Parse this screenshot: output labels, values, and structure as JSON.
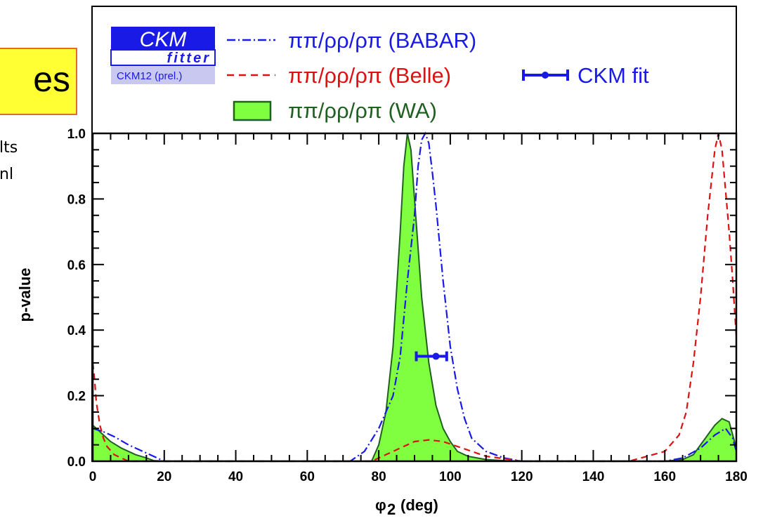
{
  "slide": {
    "badge_text": "es",
    "fragments": [
      "lts",
      "nl"
    ]
  },
  "logo": {
    "title": "CKM",
    "subtitle": "fitter",
    "tag": "CKM12 (prel.)"
  },
  "colors": {
    "babar": "#1a1ae6",
    "belle": "#dd1111",
    "wa_fill": "#80ff40",
    "wa_line": "#206020",
    "ckm_fit": "#1a1ae6",
    "logo_blue": "#1a1ae6",
    "logo_light": "#c8c8f0"
  },
  "chart_data": {
    "type": "line",
    "xlabel_main": "φ",
    "xlabel_sub": "2",
    "xlabel_unit": "(deg)",
    "ylabel": "p-value",
    "xlim": [
      0,
      180
    ],
    "ylim": [
      0,
      1.0
    ],
    "x_ticks": [
      0,
      20,
      40,
      60,
      80,
      100,
      120,
      140,
      160,
      180
    ],
    "y_ticks": [
      0.0,
      0.2,
      0.4,
      0.6,
      0.8,
      1.0
    ],
    "y_tick_labels": [
      "0.0",
      "0.2",
      "0.4",
      "0.6",
      "0.8",
      "1.0"
    ],
    "grid": false,
    "legend": [
      {
        "key": "babar",
        "label": "ππ/ρρ/ρπ (BABAR)",
        "style": "dashdot"
      },
      {
        "key": "belle",
        "label": "ππ/ρρ/ρπ (Belle)",
        "style": "dashed"
      },
      {
        "key": "wa",
        "label": "ππ/ρρ/ρπ (WA)",
        "style": "filled"
      },
      {
        "key": "ckm_fit",
        "label": "CKM fit",
        "style": "errorbar"
      }
    ],
    "series": [
      {
        "key": "wa",
        "x": [
          0,
          2,
          5,
          8,
          12,
          15,
          17,
          20,
          78,
          80,
          82,
          84,
          86,
          87,
          88,
          89,
          90,
          91,
          92,
          94,
          96,
          98,
          100,
          102,
          105,
          110,
          115,
          120,
          160,
          165,
          168,
          170,
          172,
          174,
          176,
          178,
          180
        ],
        "y": [
          0.11,
          0.09,
          0.06,
          0.04,
          0.02,
          0.01,
          0.002,
          0.0,
          0.0,
          0.05,
          0.15,
          0.35,
          0.7,
          0.9,
          1.0,
          0.95,
          0.8,
          0.65,
          0.5,
          0.3,
          0.17,
          0.1,
          0.06,
          0.03,
          0.015,
          0.005,
          0.002,
          0.0,
          0.0,
          0.005,
          0.02,
          0.05,
          0.08,
          0.11,
          0.13,
          0.12,
          0.04
        ]
      },
      {
        "key": "babar",
        "x": [
          0,
          3,
          6,
          10,
          14,
          18,
          20,
          72,
          76,
          80,
          84,
          86,
          88,
          90,
          91,
          92,
          93,
          94,
          95,
          96,
          98,
          100,
          102,
          104,
          106,
          110,
          115,
          120,
          160,
          165,
          170,
          174,
          177,
          179,
          180
        ],
        "y": [
          0.1,
          0.09,
          0.075,
          0.05,
          0.03,
          0.01,
          0.0,
          0.0,
          0.03,
          0.1,
          0.2,
          0.32,
          0.55,
          0.75,
          0.9,
          0.98,
          1.0,
          0.97,
          0.88,
          0.78,
          0.55,
          0.35,
          0.22,
          0.13,
          0.07,
          0.03,
          0.01,
          0.0,
          0.0,
          0.01,
          0.04,
          0.08,
          0.1,
          0.07,
          0.03
        ]
      },
      {
        "key": "belle",
        "x": [
          0,
          0.5,
          1,
          2,
          3,
          4,
          6,
          8,
          10,
          78,
          82,
          86,
          90,
          94,
          98,
          102,
          106,
          110,
          115,
          120,
          150,
          160,
          164,
          166,
          168,
          170,
          172,
          174,
          175,
          176,
          178,
          179,
          180
        ],
        "y": [
          0.3,
          0.25,
          0.18,
          0.11,
          0.07,
          0.045,
          0.02,
          0.01,
          0.0,
          0.0,
          0.02,
          0.04,
          0.06,
          0.065,
          0.06,
          0.045,
          0.03,
          0.015,
          0.008,
          0.0,
          0.0,
          0.03,
          0.08,
          0.15,
          0.3,
          0.5,
          0.75,
          0.95,
          1.0,
          0.95,
          0.7,
          0.55,
          0.38
        ]
      }
    ],
    "ckm_fit_point": {
      "x": 96.0,
      "y": 0.32,
      "xerr_low": 90.5,
      "xerr_high": 99.0
    }
  }
}
